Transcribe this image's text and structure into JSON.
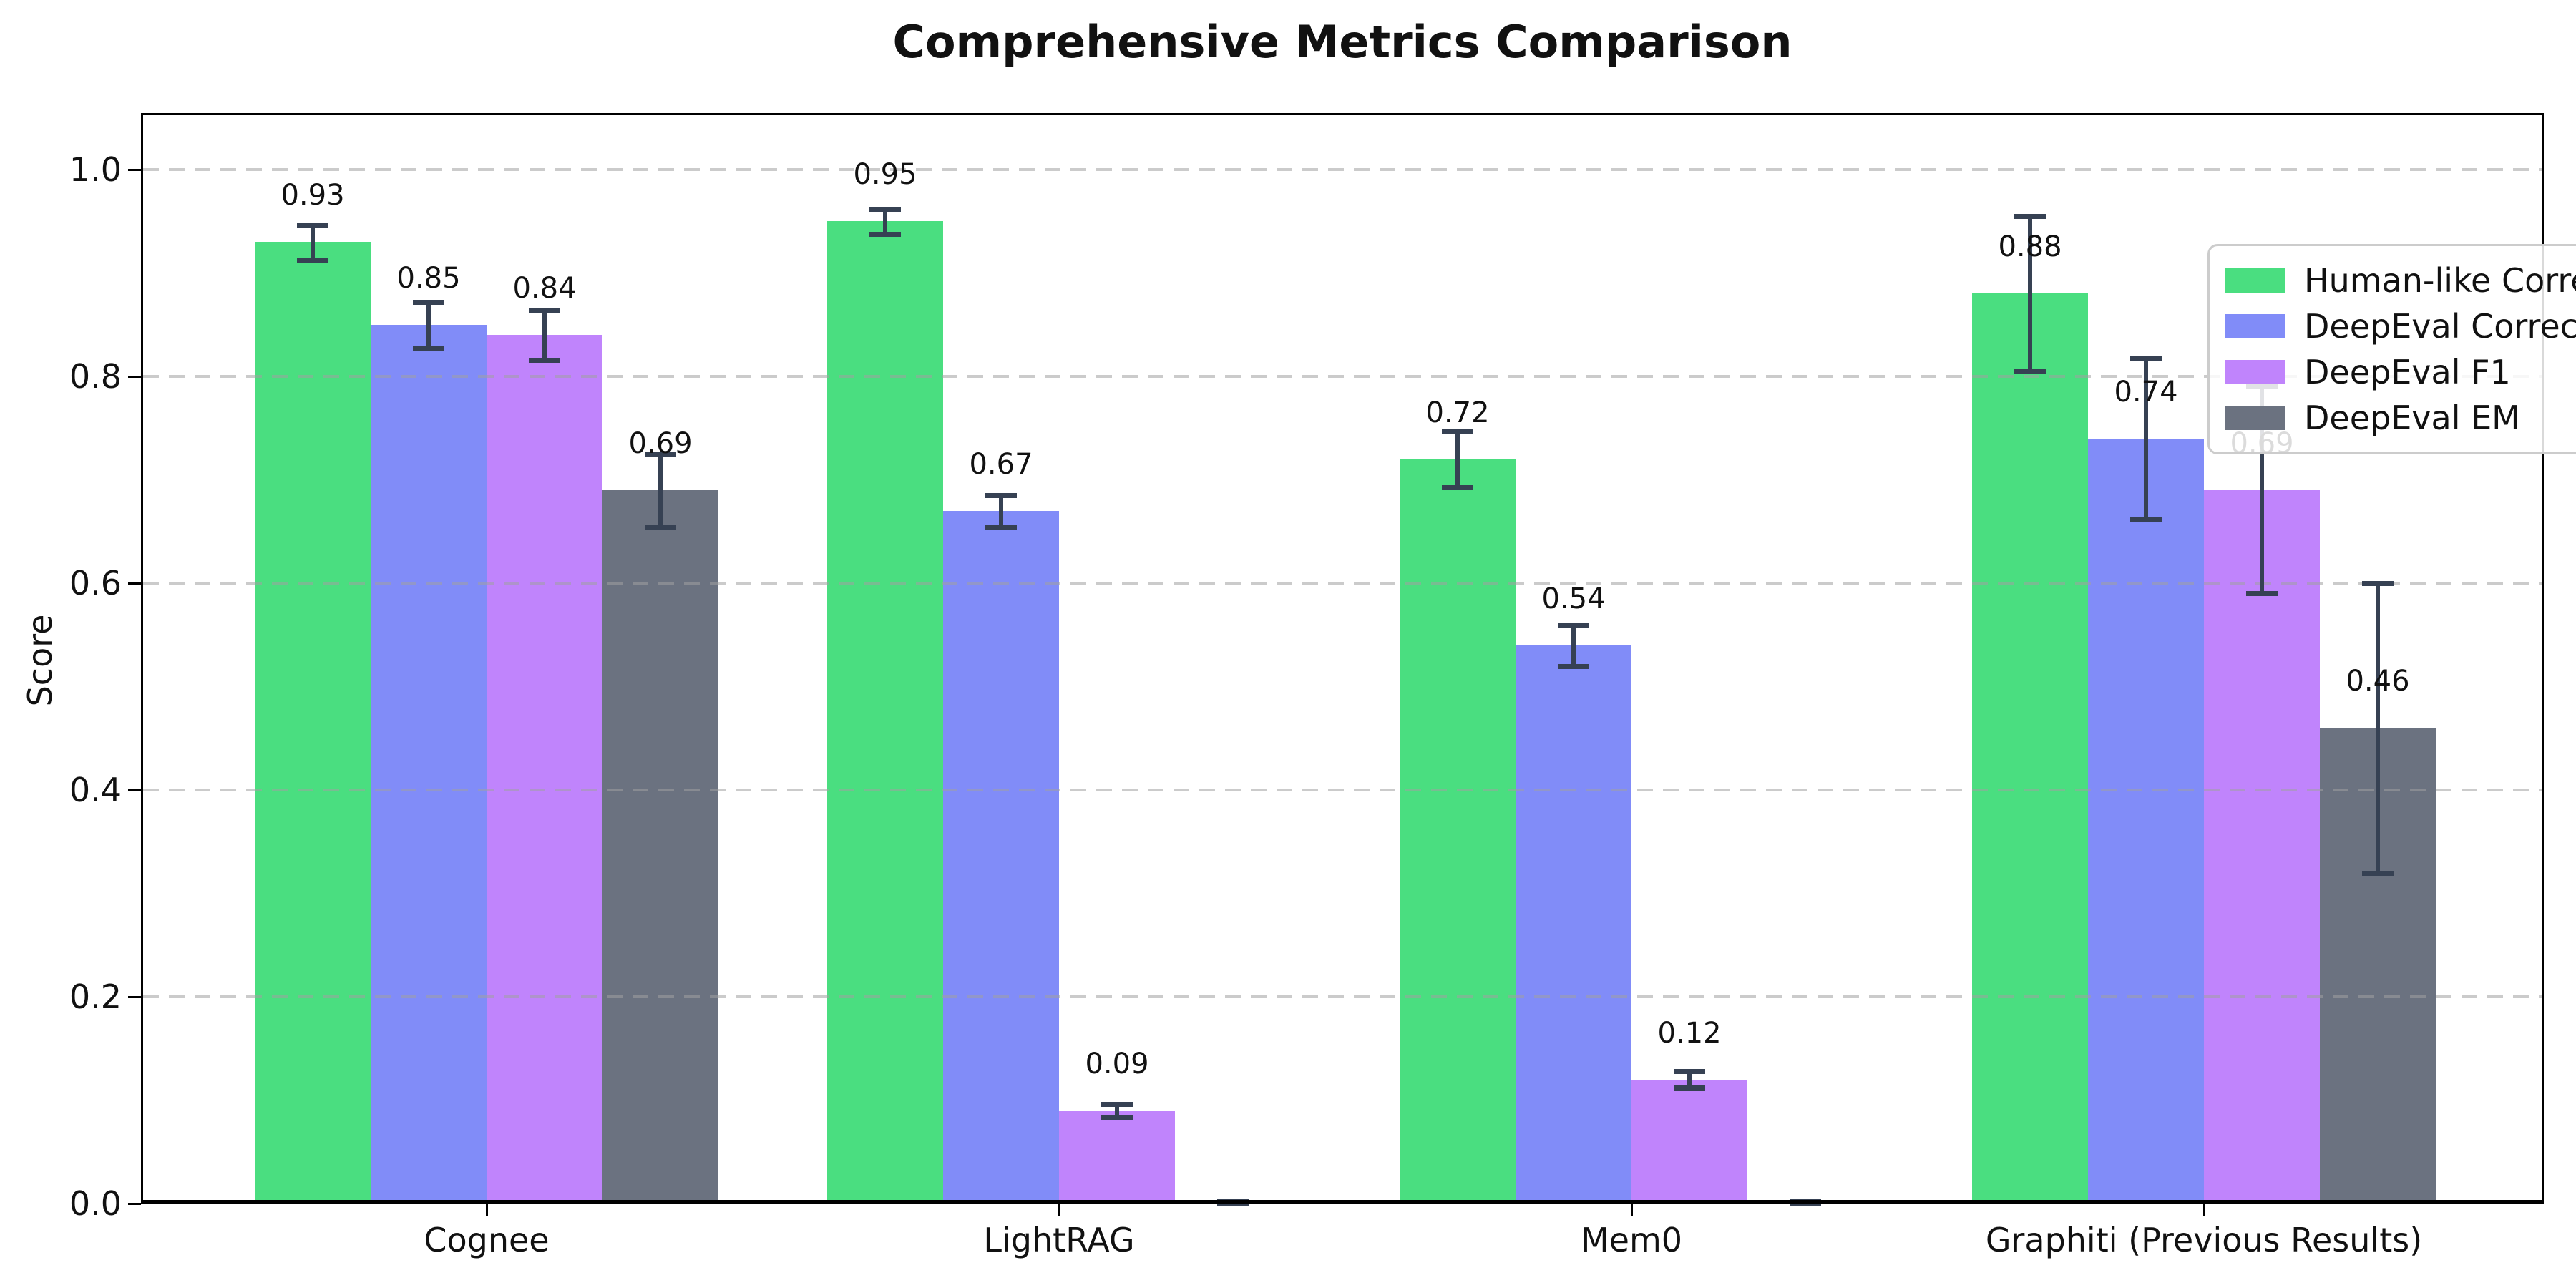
{
  "title": "Comprehensive Metrics Comparison",
  "ylabel": "Score",
  "chart_data": {
    "type": "bar",
    "title": "Comprehensive Metrics Comparison",
    "xlabel": "",
    "ylabel": "Score",
    "ylim": [
      0,
      1.05
    ],
    "yticks": [
      "0.0",
      "0.2",
      "0.4",
      "0.6",
      "0.8",
      "1.0"
    ],
    "ytick_values": [
      0.0,
      0.2,
      0.4,
      0.6,
      0.8,
      1.0
    ],
    "grid": "horizontal dashed, drawn above bars",
    "legend_position": "upper right",
    "error_bar_color": "#364153",
    "categories": [
      "Cognee",
      "LightRAG",
      "Mem0",
      "Graphiti (Previous Results)"
    ],
    "series": [
      {
        "name": "Human-like Correctness",
        "color": "#4ade80",
        "values": [
          0.93,
          0.95,
          0.72,
          0.88
        ],
        "errors": [
          0.017,
          0.012,
          0.027,
          0.075
        ],
        "labels": [
          "0.93",
          "0.95",
          "0.72",
          "0.88"
        ]
      },
      {
        "name": "DeepEval Correctness",
        "color": "#818cf8",
        "values": [
          0.85,
          0.67,
          0.54,
          0.74
        ],
        "errors": [
          0.022,
          0.015,
          0.02,
          0.078
        ],
        "labels": [
          "0.85",
          "0.67",
          "0.54",
          "0.74"
        ]
      },
      {
        "name": "DeepEval F1",
        "color": "#c084fc",
        "values": [
          0.84,
          0.09,
          0.12,
          0.69
        ],
        "errors": [
          0.024,
          0.006,
          0.008,
          0.1
        ],
        "labels": [
          "0.84",
          "0.09",
          "0.12",
          "0.69"
        ]
      },
      {
        "name": "DeepEval EM",
        "color": "#6b7280",
        "values": [
          0.69,
          0.0,
          0.0,
          0.46
        ],
        "errors": [
          0.035,
          0.003,
          0.003,
          0.14
        ],
        "labels": [
          "0.69",
          "",
          "",
          "0.46"
        ]
      }
    ]
  }
}
